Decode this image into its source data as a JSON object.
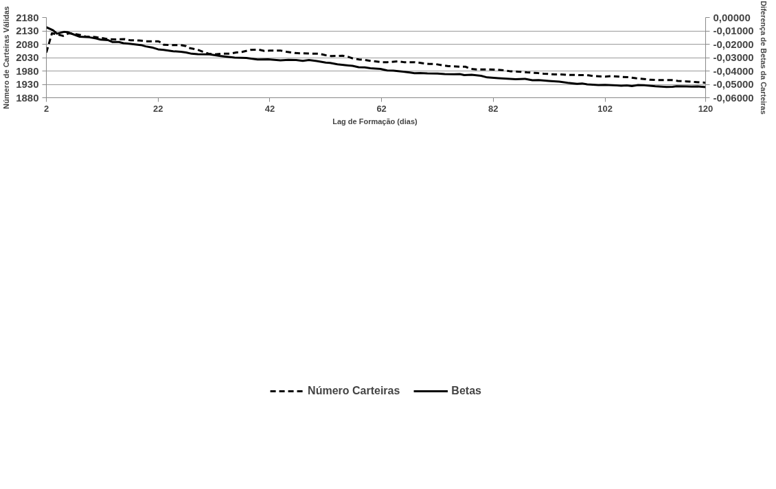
{
  "chart_data": {
    "type": "line",
    "xlabel": "Lag de Formação  (dias)",
    "ylabel": "Número de Carteiras Válidas",
    "y2label": "Diferença de Betas da Carteiras",
    "xlim": [
      2,
      120
    ],
    "xticks": [
      2,
      22,
      42,
      62,
      82,
      102,
      120
    ],
    "ylim": [
      1880,
      2180
    ],
    "yticks": [
      1880,
      1930,
      1980,
      2030,
      2080,
      2130,
      2180
    ],
    "y2lim": [
      -0.06,
      0
    ],
    "y2ticks": [
      {
        "value": -0.06,
        "label": "-0,06000"
      },
      {
        "value": -0.05,
        "label": "-0,05000"
      },
      {
        "value": -0.04,
        "label": "-0,04000"
      },
      {
        "value": -0.03,
        "label": "-0,03000"
      },
      {
        "value": -0.02,
        "label": "-0,02000"
      },
      {
        "value": -0.01,
        "label": "-0,01000"
      },
      {
        "value": 0,
        "label": "0,00000"
      }
    ],
    "grid": "y",
    "legend": "bottom",
    "marker": "none",
    "series": [
      {
        "name": "Número Carteiras",
        "color": "#000000",
        "line_style": "dashed",
        "axis": "y",
        "x": [
          2,
          3,
          4,
          5,
          6,
          7,
          8,
          9,
          10,
          11,
          12,
          13,
          14.5,
          16,
          17,
          18.6,
          20,
          22,
          22.6,
          23,
          24,
          26,
          27,
          27.5,
          29,
          30,
          31,
          32,
          33.5,
          35,
          36,
          37,
          38.5,
          40,
          41,
          42,
          44,
          45,
          46.5,
          47.6,
          49.4,
          50.7,
          52,
          53,
          55,
          56,
          57,
          58,
          59,
          60,
          62,
          63,
          65,
          66,
          68,
          69,
          70.5,
          71.6,
          73,
          74,
          76,
          77,
          78,
          79,
          81,
          82.6,
          84,
          85,
          87,
          88,
          90,
          91,
          93,
          94,
          96,
          97,
          99,
          100,
          102,
          103,
          105,
          106,
          107.5,
          109,
          110,
          111.6,
          114,
          115,
          116.6,
          118,
          120
        ],
        "values": [
          2049,
          2121,
          2117,
          2111,
          2121,
          2119,
          2115,
          2109,
          2108,
          2106,
          2103,
          2099,
          2098,
          2099,
          2095,
          2094,
          2091,
          2091,
          2086,
          2078,
          2077,
          2077,
          2073,
          2066,
          2060,
          2052,
          2045,
          2042,
          2045,
          2045,
          2049,
          2051,
          2059,
          2060,
          2055,
          2056,
          2056,
          2052,
          2047,
          2046,
          2045,
          2045,
          2039,
          2036,
          2037,
          2033,
          2026,
          2023,
          2021,
          2018,
          2013,
          2013,
          2016,
          2013,
          2013,
          2010,
          2006,
          2006,
          2001,
          1998,
          1996,
          1996,
          1988,
          1986,
          1986,
          1985,
          1982,
          1979,
          1977,
          1975,
          1972,
          1970,
          1967,
          1967,
          1965,
          1965,
          1964,
          1961,
          1959,
          1961,
          1958,
          1957,
          1953,
          1950,
          1947,
          1946,
          1946,
          1943,
          1941,
          1939,
          1936
        ]
      },
      {
        "name": "Betas",
        "color": "#000000",
        "line_style": "solid",
        "axis": "y2",
        "x": [
          2,
          3.2,
          3.9,
          5.2,
          5.8,
          6.9,
          7.9,
          9.7,
          10.9,
          11.7,
          13,
          13.8,
          15,
          15.8,
          17.1,
          18.9,
          19.8,
          20.9,
          22,
          23,
          24.7,
          26.1,
          27,
          28,
          29.1,
          31.2,
          33,
          35.7,
          37.8,
          39.8,
          41.7,
          43.9,
          45.3,
          46.7,
          47.9,
          49,
          50.4,
          52,
          52.8,
          54.1,
          55.5,
          56.8,
          57.9,
          59,
          60,
          61.8,
          63,
          64.1,
          65.9,
          67.1,
          67.9,
          68.9,
          70.2,
          72,
          73.3,
          75,
          76,
          76.8,
          78.1,
          79.8,
          80.9,
          82.9,
          86,
          87.7,
          89,
          90.1,
          91.9,
          93.8,
          95.3,
          97,
          97.9,
          98.8,
          100.8,
          102,
          104.1,
          104.9,
          105.9,
          106.8,
          107.9,
          109,
          111,
          113,
          114.1,
          114.8,
          116.6,
          117.5,
          118.6,
          120
        ],
        "values": [
          -0.0073,
          -0.0095,
          -0.0121,
          -0.0107,
          -0.011,
          -0.0127,
          -0.0143,
          -0.0148,
          -0.0157,
          -0.0165,
          -0.0169,
          -0.0183,
          -0.0183,
          -0.0192,
          -0.0197,
          -0.0206,
          -0.0216,
          -0.0224,
          -0.0238,
          -0.0242,
          -0.0252,
          -0.0256,
          -0.0262,
          -0.0271,
          -0.0274,
          -0.0276,
          -0.0287,
          -0.03,
          -0.0303,
          -0.0314,
          -0.0313,
          -0.0321,
          -0.0317,
          -0.0318,
          -0.0324,
          -0.0318,
          -0.0326,
          -0.0337,
          -0.034,
          -0.035,
          -0.0356,
          -0.0362,
          -0.0372,
          -0.0373,
          -0.0379,
          -0.0385,
          -0.0396,
          -0.0397,
          -0.0405,
          -0.0412,
          -0.0417,
          -0.0415,
          -0.0418,
          -0.0419,
          -0.0423,
          -0.0424,
          -0.0423,
          -0.0431,
          -0.0428,
          -0.0436,
          -0.0448,
          -0.0454,
          -0.0462,
          -0.0459,
          -0.0469,
          -0.0468,
          -0.0474,
          -0.0479,
          -0.0488,
          -0.0496,
          -0.0493,
          -0.05,
          -0.0505,
          -0.0504,
          -0.0508,
          -0.051,
          -0.0508,
          -0.0513,
          -0.0505,
          -0.0507,
          -0.0514,
          -0.0519,
          -0.0518,
          -0.0514,
          -0.0515,
          -0.0517,
          -0.0516,
          -0.052
        ]
      }
    ]
  }
}
